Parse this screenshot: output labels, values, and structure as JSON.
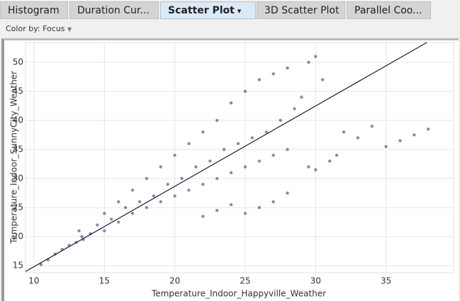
{
  "tabs": [
    "Histogram",
    "Duration Cur...",
    "Scatter Plot",
    "3D Scatter Plot",
    "Parallel Coo..."
  ],
  "selected_tab": 2,
  "toolbar": {
    "color_by": "Color by: Focus"
  },
  "chart_data": {
    "type": "scatter",
    "x_label": "Temperature_Indoor_Happyville_Weather",
    "y_label": "Temperature_Indoor_SunnyCity_Weather",
    "xlim": [
      9.4,
      39.8
    ],
    "ylim": [
      13.8,
      53.4
    ],
    "xticks": [
      10,
      15,
      20,
      25,
      30,
      35
    ],
    "yticks": [
      15,
      20,
      25,
      30,
      35,
      40,
      45,
      50
    ],
    "grid": true,
    "series": [
      {
        "color": "#2d2b52",
        "x": [
          10.5,
          11,
          11.5,
          12,
          12.5,
          13,
          13.2,
          13.4,
          13.5,
          14,
          14.5,
          15,
          15,
          15.5,
          16,
          16,
          16.5,
          17,
          17,
          17.5,
          18,
          18,
          18.5,
          19,
          19,
          19.5,
          20,
          20,
          20.5,
          21,
          21,
          21.5,
          22,
          22,
          22.5,
          23,
          23,
          23.5,
          24,
          24,
          24.5,
          25,
          25,
          25.5,
          26,
          26,
          26.5,
          27,
          27,
          27.5,
          28,
          28,
          28.5,
          29,
          29.5,
          30,
          30.5,
          29.5,
          30,
          31,
          31.5,
          32,
          33,
          34,
          35,
          36,
          37,
          38,
          25,
          26,
          27,
          28,
          22,
          23,
          24
        ],
        "y": [
          15.2,
          16,
          17,
          17.8,
          18.5,
          19,
          21,
          20,
          19.5,
          20.5,
          22,
          21,
          24,
          23,
          22.5,
          26,
          25,
          24,
          28,
          26,
          25,
          30,
          27,
          26,
          32,
          29,
          27,
          34,
          30,
          28,
          36,
          32,
          29,
          38,
          33,
          30,
          40,
          35,
          31,
          43,
          36,
          32,
          45,
          37,
          33,
          47,
          38,
          34,
          48,
          40,
          35,
          49,
          42,
          44,
          50,
          51,
          47,
          32,
          31.5,
          33,
          34,
          38,
          37,
          39,
          35.5,
          36.5,
          37.5,
          38.5,
          24,
          25,
          26,
          27.5,
          23.5,
          24.5,
          25.5
        ]
      }
    ],
    "fit_line": {
      "color": "#1a1a3a",
      "x": [
        9.4,
        37.9
      ],
      "y": [
        14,
        53.4
      ]
    }
  }
}
